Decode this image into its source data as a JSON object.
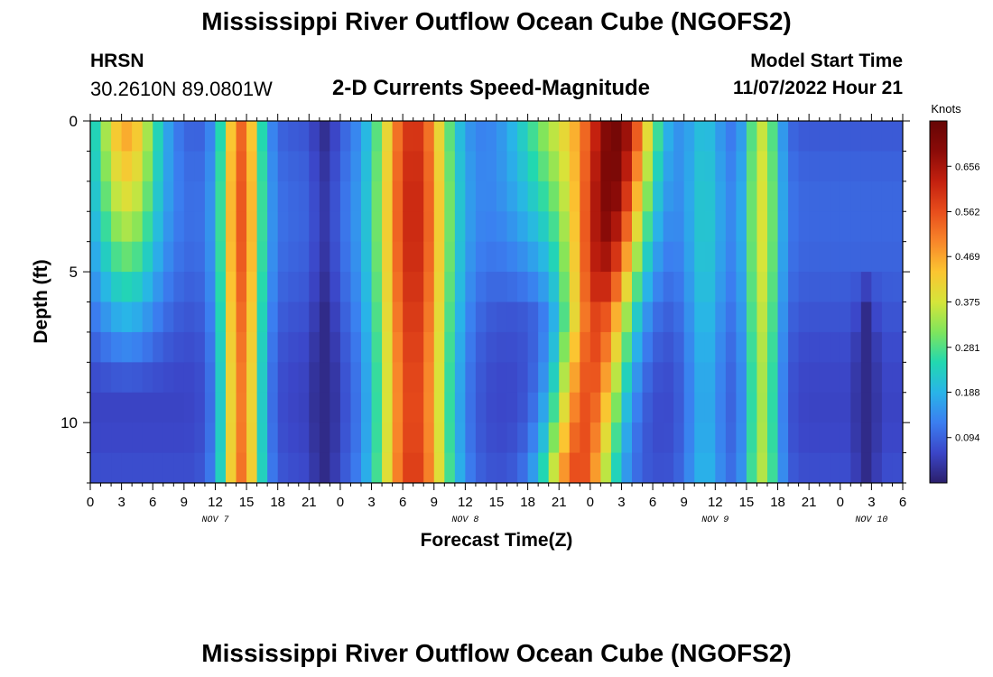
{
  "header": {
    "title": "Mississippi River Outflow Ocean Cube (NGOFS2)",
    "station": "HRSN",
    "coordinates": "30.2610N  89.0801W",
    "subtitle": "2-D Currents Speed-Magnitude",
    "model_start_label": "Model Start Time",
    "model_start_value": "11/07/2022 Hour 21"
  },
  "footer": {
    "title": "Mississippi River Outflow Ocean Cube (NGOFS2)"
  },
  "chart_data": {
    "type": "heatmap",
    "xlabel": "Forecast Time(Z)",
    "ylabel": "Depth (ft)",
    "x_start_hour": 0,
    "x_end_hour": 78,
    "x_tick_labels": [
      "0",
      "3",
      "6",
      "9",
      "12",
      "15",
      "18",
      "21",
      "0",
      "3",
      "6",
      "9",
      "12",
      "15",
      "18",
      "21",
      "0",
      "3",
      "6",
      "9",
      "12",
      "15",
      "18",
      "21",
      "0",
      "3",
      "6"
    ],
    "date_labels": [
      {
        "hour": 12,
        "label": "NOV 7"
      },
      {
        "hour": 36,
        "label": "NOV 8"
      },
      {
        "hour": 60,
        "label": "NOV 9"
      },
      {
        "hour": 75,
        "label": "NOV 10"
      }
    ],
    "y_range": [
      0,
      12
    ],
    "y_ticks": [
      "0",
      "5",
      "10"
    ],
    "colorbar": {
      "title": "Knots",
      "range": [
        0,
        0.75
      ],
      "ticks": [
        "0.656",
        "0.562",
        "0.469",
        "0.375",
        "0.281",
        "0.188",
        "0.094"
      ],
      "colors": [
        "#2b1f6b",
        "#3b46c8",
        "#3b7ef0",
        "#29b4e8",
        "#22d8b0",
        "#7fe55c",
        "#d5e53a",
        "#fbc531",
        "#f8862a",
        "#e84d1c",
        "#c3200f",
        "#8a0b08",
        "#660505"
      ]
    }
  }
}
